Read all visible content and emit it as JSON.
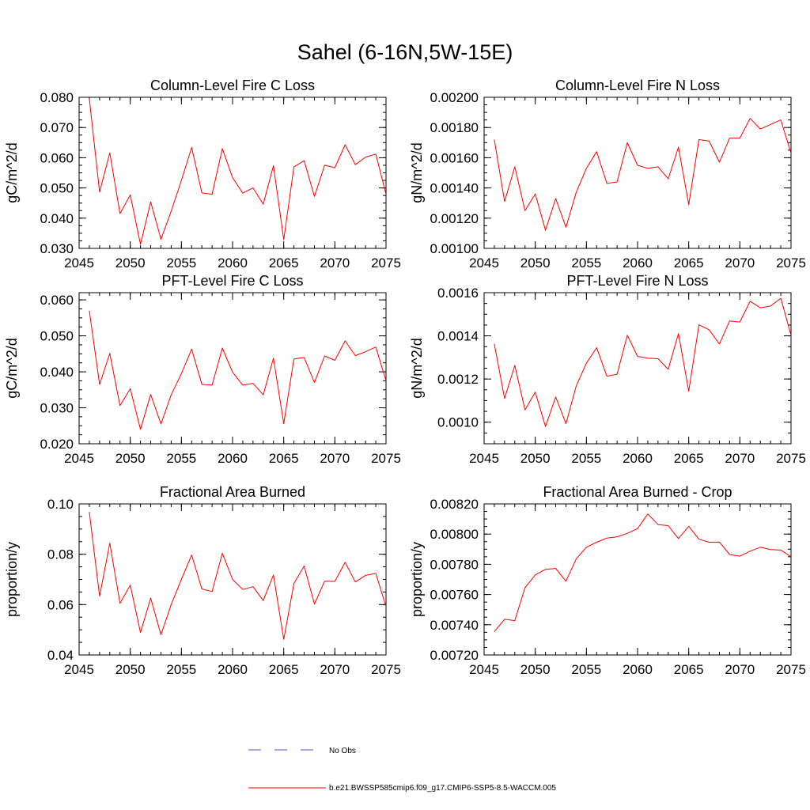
{
  "title": "Sahel (6-16N,5W-15E)",
  "colors": {
    "series": "#ff0000",
    "obs": "#4a5bd0",
    "axis": "#000000"
  },
  "legend": {
    "obs_label": "No Obs",
    "model_label": "b.e21.BWSSP585cmip6.f09_g17.CMIP6-SSP5-8.5-WACCM.005"
  },
  "chart_data": [
    {
      "type": "line",
      "title": "Column-Level Fire C Loss",
      "ylabel": "gC/m^2/d",
      "xlim": [
        2045,
        2075
      ],
      "ylim": [
        0.03,
        0.08
      ],
      "xticks": [
        2045,
        2050,
        2055,
        2060,
        2065,
        2070,
        2075
      ],
      "xtick_labels": [
        "2045",
        "2050",
        "2055",
        "2060",
        "2065",
        "2070",
        "2075"
      ],
      "yticks": [
        0.03,
        0.04,
        0.05,
        0.06,
        0.07,
        0.08
      ],
      "ytick_labels": [
        "0.030",
        "0.040",
        "0.050",
        "0.060",
        "0.070",
        "0.080"
      ],
      "y_minor_step": 0.0025,
      "x": [
        2046,
        2047,
        2048,
        2049,
        2050,
        2051,
        2052,
        2053,
        2054,
        2055,
        2056,
        2057,
        2058,
        2059,
        2060,
        2061,
        2062,
        2063,
        2064,
        2065,
        2066,
        2067,
        2068,
        2069,
        2070,
        2071,
        2072,
        2073,
        2074,
        2075
      ],
      "values": [
        0.0796,
        0.0486,
        0.0616,
        0.0415,
        0.0477,
        0.0313,
        0.0454,
        0.033,
        0.0423,
        0.0525,
        0.0634,
        0.0484,
        0.0479,
        0.063,
        0.0534,
        0.0483,
        0.05,
        0.0446,
        0.0574,
        0.0329,
        0.057,
        0.059,
        0.0472,
        0.0575,
        0.0567,
        0.0643,
        0.0577,
        0.0602,
        0.0612,
        0.0479
      ]
    },
    {
      "type": "line",
      "title": "Column-Level Fire N Loss",
      "ylabel": "gN/m^2/d",
      "xlim": [
        2045,
        2075
      ],
      "ylim": [
        0.001,
        0.002
      ],
      "xticks": [
        2045,
        2050,
        2055,
        2060,
        2065,
        2070,
        2075
      ],
      "xtick_labels": [
        "2045",
        "2050",
        "2055",
        "2060",
        "2065",
        "2070",
        "2075"
      ],
      "yticks": [
        0.001,
        0.0012,
        0.0014,
        0.0016,
        0.0018,
        0.002
      ],
      "ytick_labels": [
        "0.00100",
        "0.00120",
        "0.00140",
        "0.00160",
        "0.00180",
        "0.00200"
      ],
      "y_minor_step": 5e-05,
      "x": [
        2046,
        2047,
        2048,
        2049,
        2050,
        2051,
        2052,
        2053,
        2054,
        2055,
        2056,
        2057,
        2058,
        2059,
        2060,
        2061,
        2062,
        2063,
        2064,
        2065,
        2066,
        2067,
        2068,
        2069,
        2070,
        2071,
        2072,
        2073,
        2074,
        2075
      ],
      "values": [
        0.00172,
        0.00131,
        0.00154,
        0.00125,
        0.00136,
        0.00112,
        0.00133,
        0.00114,
        0.00137,
        0.00153,
        0.00164,
        0.00143,
        0.00144,
        0.0017,
        0.00155,
        0.00153,
        0.00154,
        0.00146,
        0.00167,
        0.00129,
        0.00172,
        0.00171,
        0.00157,
        0.00173,
        0.00173,
        0.00186,
        0.00179,
        0.00182,
        0.00185,
        0.00163
      ]
    },
    {
      "type": "line",
      "title": "PFT-Level Fire C Loss",
      "ylabel": "gC/m^2/d",
      "xlim": [
        2045,
        2075
      ],
      "ylim": [
        0.02,
        0.062
      ],
      "xticks": [
        2045,
        2050,
        2055,
        2060,
        2065,
        2070,
        2075
      ],
      "xtick_labels": [
        "2045",
        "2050",
        "2055",
        "2060",
        "2065",
        "2070",
        "2075"
      ],
      "yticks": [
        0.02,
        0.03,
        0.04,
        0.05,
        0.06
      ],
      "ytick_labels": [
        "0.020",
        "0.030",
        "0.040",
        "0.050",
        "0.060"
      ],
      "y_minor_step": 0.0025,
      "x": [
        2046,
        2047,
        2048,
        2049,
        2050,
        2051,
        2052,
        2053,
        2054,
        2055,
        2056,
        2057,
        2058,
        2059,
        2060,
        2061,
        2062,
        2063,
        2064,
        2065,
        2066,
        2067,
        2068,
        2069,
        2070,
        2071,
        2072,
        2073,
        2074,
        2075
      ],
      "values": [
        0.057,
        0.0365,
        0.0451,
        0.0306,
        0.0353,
        0.024,
        0.0337,
        0.0255,
        0.0336,
        0.0395,
        0.0463,
        0.0365,
        0.0363,
        0.0466,
        0.0399,
        0.0363,
        0.0368,
        0.0336,
        0.0438,
        0.0256,
        0.0436,
        0.044,
        0.037,
        0.0444,
        0.0432,
        0.0486,
        0.0445,
        0.0456,
        0.0469,
        0.0375
      ]
    },
    {
      "type": "line",
      "title": "PFT-Level Fire N Loss",
      "ylabel": "gN/m^2/d",
      "xlim": [
        2045,
        2075
      ],
      "ylim": [
        0.0009,
        0.0016
      ],
      "xticks": [
        2045,
        2050,
        2055,
        2060,
        2065,
        2070,
        2075
      ],
      "xtick_labels": [
        "2045",
        "2050",
        "2055",
        "2060",
        "2065",
        "2070",
        "2075"
      ],
      "yticks": [
        0.001,
        0.0012,
        0.0014,
        0.0016
      ],
      "ytick_labels": [
        "0.0010",
        "0.0012",
        "0.0014",
        "0.0016"
      ],
      "y_minor_step": 5e-05,
      "x": [
        2046,
        2047,
        2048,
        2049,
        2050,
        2051,
        2052,
        2053,
        2054,
        2055,
        2056,
        2057,
        2058,
        2059,
        2060,
        2061,
        2062,
        2063,
        2064,
        2065,
        2066,
        2067,
        2068,
        2069,
        2070,
        2071,
        2072,
        2073,
        2074,
        2075
      ],
      "values": [
        0.001363,
        0.00111,
        0.001263,
        0.001057,
        0.001139,
        0.00098,
        0.001117,
        0.000993,
        0.001167,
        0.001273,
        0.001345,
        0.001213,
        0.001222,
        0.001403,
        0.001305,
        0.001296,
        0.001294,
        0.001245,
        0.001411,
        0.001143,
        0.001451,
        0.001428,
        0.001362,
        0.001469,
        0.001464,
        0.00156,
        0.00153,
        0.001538,
        0.001574,
        0.001403
      ]
    },
    {
      "type": "line",
      "title": "Fractional Area Burned",
      "ylabel": "proportion/y",
      "xlim": [
        2045,
        2075
      ],
      "ylim": [
        0.04,
        0.1
      ],
      "xticks": [
        2045,
        2050,
        2055,
        2060,
        2065,
        2070,
        2075
      ],
      "xtick_labels": [
        "2045",
        "2050",
        "2055",
        "2060",
        "2065",
        "2070",
        "2075"
      ],
      "yticks": [
        0.04,
        0.06,
        0.08,
        0.1
      ],
      "ytick_labels": [
        "0.04",
        "0.06",
        "0.08",
        "0.10"
      ],
      "y_minor_step": 0.005,
      "x": [
        2046,
        2047,
        2048,
        2049,
        2050,
        2051,
        2052,
        2053,
        2054,
        2055,
        2056,
        2057,
        2058,
        2059,
        2060,
        2061,
        2062,
        2063,
        2064,
        2065,
        2066,
        2067,
        2068,
        2069,
        2070,
        2071,
        2072,
        2073,
        2074,
        2075
      ],
      "values": [
        0.0968,
        0.0633,
        0.0844,
        0.0605,
        0.0677,
        0.0489,
        0.0626,
        0.048,
        0.06,
        0.07,
        0.0797,
        0.0662,
        0.0652,
        0.0804,
        0.07,
        0.066,
        0.0671,
        0.0616,
        0.0718,
        0.0462,
        0.0684,
        0.0753,
        0.0602,
        0.0693,
        0.0692,
        0.0768,
        0.069,
        0.0716,
        0.0724,
        0.0592
      ]
    },
    {
      "type": "line",
      "title": "Fractional Area Burned - Crop",
      "ylabel": "proportion/y",
      "xlim": [
        2045,
        2075
      ],
      "ylim": [
        0.0072,
        0.0082
      ],
      "xticks": [
        2045,
        2050,
        2055,
        2060,
        2065,
        2070,
        2075
      ],
      "xtick_labels": [
        "2045",
        "2050",
        "2055",
        "2060",
        "2065",
        "2070",
        "2075"
      ],
      "yticks": [
        0.0072,
        0.0074,
        0.0076,
        0.0078,
        0.008,
        0.0082
      ],
      "ytick_labels": [
        "0.00720",
        "0.00740",
        "0.00760",
        "0.00780",
        "0.00800",
        "0.00820"
      ],
      "y_minor_step": 5e-05,
      "x": [
        2046,
        2047,
        2048,
        2049,
        2050,
        2051,
        2052,
        2053,
        2054,
        2055,
        2056,
        2057,
        2058,
        2059,
        2060,
        2061,
        2062,
        2063,
        2064,
        2065,
        2066,
        2067,
        2068,
        2069,
        2070,
        2071,
        2072,
        2073,
        2074,
        2075
      ],
      "values": [
        0.007355,
        0.007436,
        0.007427,
        0.007645,
        0.00773,
        0.007767,
        0.007773,
        0.007688,
        0.007835,
        0.007913,
        0.007946,
        0.007974,
        0.007982,
        0.008005,
        0.008036,
        0.008133,
        0.008063,
        0.008056,
        0.00797,
        0.008052,
        0.007966,
        0.007946,
        0.007947,
        0.007865,
        0.007854,
        0.007887,
        0.007913,
        0.007898,
        0.007894,
        0.007851
      ]
    }
  ]
}
